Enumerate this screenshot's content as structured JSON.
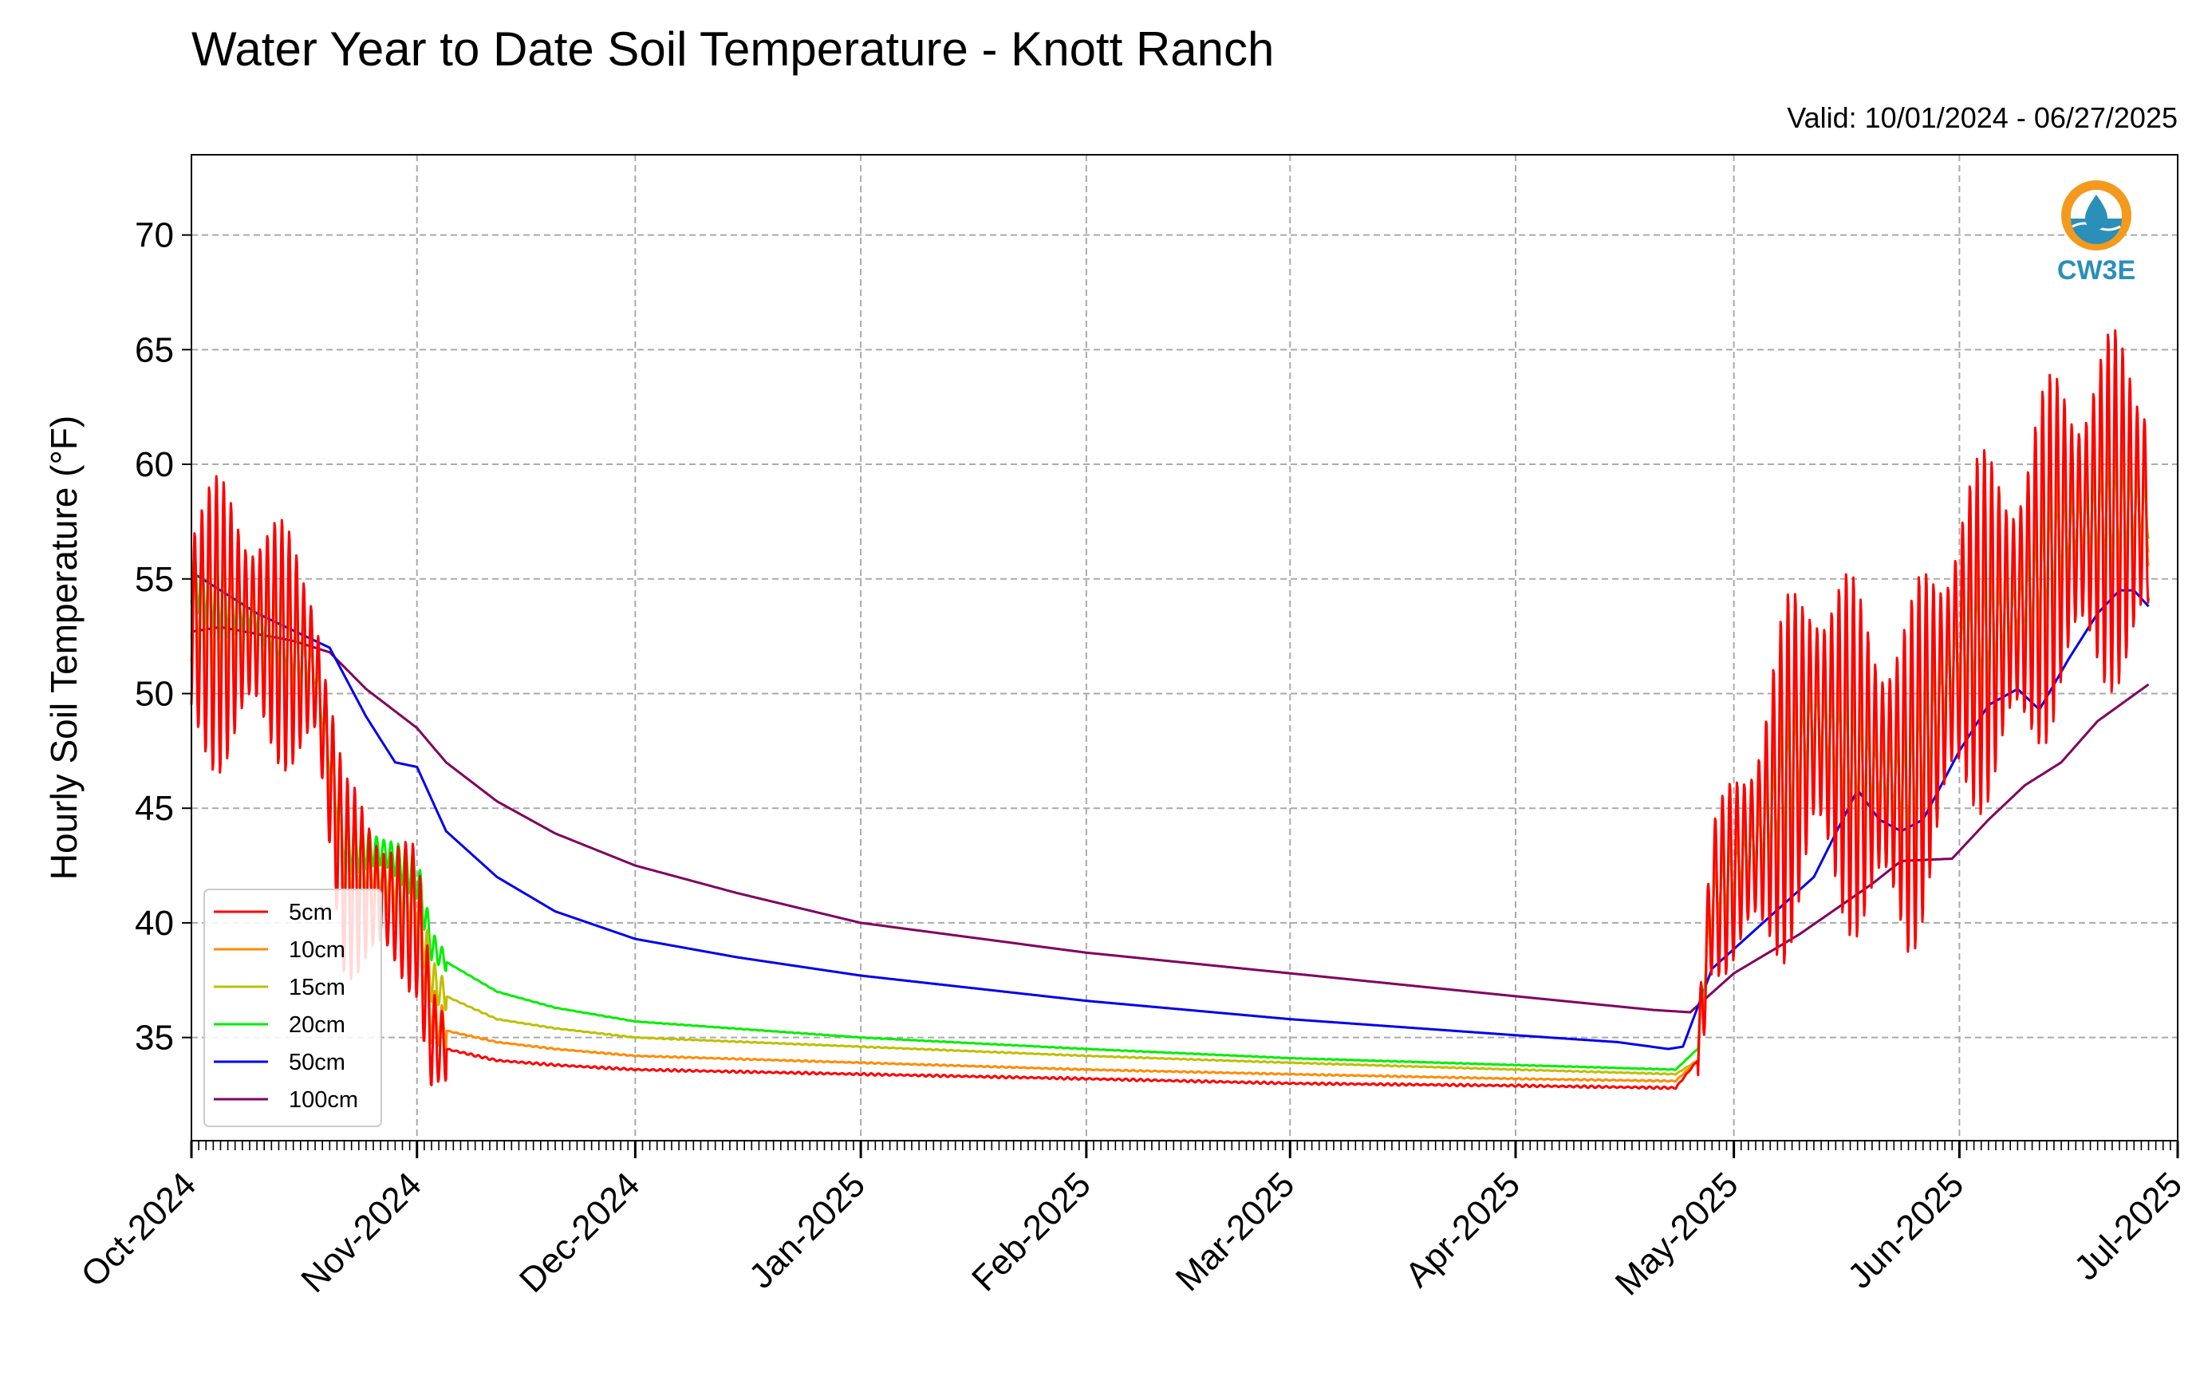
{
  "chart_data": {
    "type": "line",
    "title": "Water Year to Date Soil Temperature - Knott Ranch",
    "subtitle": "Valid: 10/01/2024 - 06/27/2025",
    "xlabel": "",
    "ylabel": "Hourly Soil Temperature (°F)",
    "x_range": [
      "2024-10-01",
      "2025-07-01"
    ],
    "ylim": [
      30.5,
      73.5
    ],
    "y_ticks": [
      35,
      40,
      45,
      50,
      55,
      60,
      65,
      70
    ],
    "x_ticks": [
      {
        "date": "2024-10-01",
        "label": "Oct-2024"
      },
      {
        "date": "2024-11-01",
        "label": "Nov-2024"
      },
      {
        "date": "2024-12-01",
        "label": "Dec-2024"
      },
      {
        "date": "2025-01-01",
        "label": "Jan-2025"
      },
      {
        "date": "2025-02-01",
        "label": "Feb-2025"
      },
      {
        "date": "2025-03-01",
        "label": "Mar-2025"
      },
      {
        "date": "2025-04-01",
        "label": "Apr-2025"
      },
      {
        "date": "2025-05-01",
        "label": "May-2025"
      },
      {
        "date": "2025-06-01",
        "label": "Jun-2025"
      },
      {
        "date": "2025-07-01",
        "label": "Jul-2025"
      }
    ],
    "grid": true,
    "legend_position": "lower-left",
    "logo_text": "CW3E",
    "series": [
      {
        "name": "5cm",
        "color": "#ff0000",
        "amplitude": 1.0,
        "points": [
          [
            "2024-10-01",
            53
          ],
          [
            "2024-10-10",
            53
          ],
          [
            "2024-10-18",
            51
          ],
          [
            "2024-10-22",
            42
          ],
          [
            "2024-10-28",
            41
          ],
          [
            "2024-11-01",
            40
          ],
          [
            "2024-11-03",
            35
          ],
          [
            "2024-11-05",
            34.5
          ],
          [
            "2024-11-12",
            34
          ],
          [
            "2024-11-20",
            33.8
          ],
          [
            "2024-12-01",
            33.6
          ],
          [
            "2025-01-01",
            33.4
          ],
          [
            "2025-02-01",
            33.2
          ],
          [
            "2025-03-01",
            33.0
          ],
          [
            "2025-04-01",
            32.9
          ],
          [
            "2025-04-23",
            32.8
          ],
          [
            "2025-04-26",
            34
          ],
          [
            "2025-04-28",
            41
          ],
          [
            "2025-05-05",
            44
          ],
          [
            "2025-05-12",
            49
          ],
          [
            "2025-05-18",
            47
          ],
          [
            "2025-05-25",
            46
          ],
          [
            "2025-06-01",
            52
          ],
          [
            "2025-06-10",
            54
          ],
          [
            "2025-06-15",
            57
          ],
          [
            "2025-06-22",
            58
          ],
          [
            "2025-06-27",
            58
          ]
        ]
      },
      {
        "name": "10cm",
        "color": "#ff8c00",
        "amplitude": 0.6,
        "points": [
          [
            "2024-10-01",
            53.5
          ],
          [
            "2024-10-10",
            53
          ],
          [
            "2024-10-18",
            51
          ],
          [
            "2024-10-22",
            43
          ],
          [
            "2024-10-28",
            41.5
          ],
          [
            "2024-11-01",
            40.5
          ],
          [
            "2024-11-03",
            36
          ],
          [
            "2024-11-05",
            35.3
          ],
          [
            "2024-11-12",
            34.8
          ],
          [
            "2024-11-20",
            34.5
          ],
          [
            "2024-12-01",
            34.2
          ],
          [
            "2025-01-01",
            33.9
          ],
          [
            "2025-02-01",
            33.6
          ],
          [
            "2025-03-01",
            33.4
          ],
          [
            "2025-04-01",
            33.2
          ],
          [
            "2025-04-23",
            33.1
          ],
          [
            "2025-04-26",
            34
          ],
          [
            "2025-04-28",
            41
          ],
          [
            "2025-05-05",
            44
          ],
          [
            "2025-05-12",
            49
          ],
          [
            "2025-05-18",
            47
          ],
          [
            "2025-05-25",
            46
          ],
          [
            "2025-06-01",
            52
          ],
          [
            "2025-06-10",
            54
          ],
          [
            "2025-06-15",
            57
          ],
          [
            "2025-06-22",
            58
          ],
          [
            "2025-06-27",
            58
          ]
        ]
      },
      {
        "name": "15cm",
        "color": "#bfbf00",
        "amplitude": 0.45,
        "points": [
          [
            "2024-10-01",
            54
          ],
          [
            "2024-10-10",
            53
          ],
          [
            "2024-10-18",
            51
          ],
          [
            "2024-10-22",
            43
          ],
          [
            "2024-10-28",
            42
          ],
          [
            "2024-11-01",
            41
          ],
          [
            "2024-11-03",
            37.5
          ],
          [
            "2024-11-05",
            36.8
          ],
          [
            "2024-11-12",
            35.8
          ],
          [
            "2024-11-20",
            35.4
          ],
          [
            "2024-12-01",
            35.0
          ],
          [
            "2025-01-01",
            34.6
          ],
          [
            "2025-02-01",
            34.2
          ],
          [
            "2025-03-01",
            33.9
          ],
          [
            "2025-04-01",
            33.6
          ],
          [
            "2025-04-23",
            33.4
          ],
          [
            "2025-04-26",
            34
          ],
          [
            "2025-04-28",
            41
          ],
          [
            "2025-05-05",
            44
          ],
          [
            "2025-05-12",
            49
          ],
          [
            "2025-05-18",
            47
          ],
          [
            "2025-05-25",
            46
          ],
          [
            "2025-06-01",
            52
          ],
          [
            "2025-06-10",
            54
          ],
          [
            "2025-06-15",
            57
          ],
          [
            "2025-06-22",
            58
          ],
          [
            "2025-06-27",
            58
          ]
        ]
      },
      {
        "name": "20cm",
        "color": "#00ee00",
        "amplitude": 0.3,
        "points": [
          [
            "2024-10-01",
            55
          ],
          [
            "2024-10-10",
            53.5
          ],
          [
            "2024-10-18",
            51
          ],
          [
            "2024-10-22",
            43.5
          ],
          [
            "2024-10-28",
            43
          ],
          [
            "2024-11-01",
            42
          ],
          [
            "2024-11-03",
            39
          ],
          [
            "2024-11-05",
            38.3
          ],
          [
            "2024-11-12",
            37
          ],
          [
            "2024-11-20",
            36.3
          ],
          [
            "2024-12-01",
            35.7
          ],
          [
            "2025-01-01",
            35.0
          ],
          [
            "2025-02-01",
            34.5
          ],
          [
            "2025-03-01",
            34.1
          ],
          [
            "2025-04-01",
            33.8
          ],
          [
            "2025-04-23",
            33.6
          ],
          [
            "2025-04-26",
            34.5
          ],
          [
            "2025-04-28",
            41
          ],
          [
            "2025-05-05",
            44
          ],
          [
            "2025-05-12",
            49
          ],
          [
            "2025-05-18",
            47
          ],
          [
            "2025-05-25",
            46
          ],
          [
            "2025-06-01",
            52
          ],
          [
            "2025-06-10",
            54
          ],
          [
            "2025-06-15",
            57
          ],
          [
            "2025-06-22",
            58
          ],
          [
            "2025-06-27",
            58
          ]
        ]
      },
      {
        "name": "50cm",
        "color": "#0000ee",
        "amplitude": 0,
        "points": [
          [
            "2024-10-01",
            55.3
          ],
          [
            "2024-10-10",
            53.5
          ],
          [
            "2024-10-20",
            52
          ],
          [
            "2024-10-25",
            49
          ],
          [
            "2024-10-29",
            47
          ],
          [
            "2024-11-01",
            46.8
          ],
          [
            "2024-11-05",
            44
          ],
          [
            "2024-11-12",
            42
          ],
          [
            "2024-11-20",
            40.5
          ],
          [
            "2024-12-01",
            39.3
          ],
          [
            "2024-12-15",
            38.5
          ],
          [
            "2025-01-01",
            37.7
          ],
          [
            "2025-02-01",
            36.6
          ],
          [
            "2025-03-01",
            35.8
          ],
          [
            "2025-04-01",
            35.1
          ],
          [
            "2025-04-15",
            34.8
          ],
          [
            "2025-04-22",
            34.5
          ],
          [
            "2025-04-24",
            34.6
          ],
          [
            "2025-04-28",
            38
          ],
          [
            "2025-05-05",
            40
          ],
          [
            "2025-05-12",
            42
          ],
          [
            "2025-05-18",
            45.8
          ],
          [
            "2025-05-21",
            44.5
          ],
          [
            "2025-05-24",
            44
          ],
          [
            "2025-05-27",
            44.5
          ],
          [
            "2025-06-01",
            47.5
          ],
          [
            "2025-06-05",
            49.5
          ],
          [
            "2025-06-09",
            50.2
          ],
          [
            "2025-06-12",
            49.3
          ],
          [
            "2025-06-16",
            51.5
          ],
          [
            "2025-06-20",
            53.5
          ],
          [
            "2025-06-23",
            54.5
          ],
          [
            "2025-06-25",
            54.5
          ],
          [
            "2025-06-27",
            53.8
          ]
        ]
      },
      {
        "name": "100cm",
        "color": "#800060",
        "amplitude": 0,
        "points": [
          [
            "2024-10-01",
            52.7
          ],
          [
            "2024-10-05",
            52.9
          ],
          [
            "2024-10-15",
            52.3
          ],
          [
            "2024-10-20",
            51.8
          ],
          [
            "2024-10-25",
            50.2
          ],
          [
            "2024-11-01",
            48.5
          ],
          [
            "2024-11-05",
            47.0
          ],
          [
            "2024-11-12",
            45.3
          ],
          [
            "2024-11-20",
            43.9
          ],
          [
            "2024-12-01",
            42.5
          ],
          [
            "2024-12-15",
            41.3
          ],
          [
            "2025-01-01",
            40.0
          ],
          [
            "2025-02-01",
            38.7
          ],
          [
            "2025-03-01",
            37.8
          ],
          [
            "2025-04-01",
            36.8
          ],
          [
            "2025-04-20",
            36.2
          ],
          [
            "2025-04-25",
            36.1
          ],
          [
            "2025-05-01",
            37.8
          ],
          [
            "2025-05-10",
            39.5
          ],
          [
            "2025-05-20",
            41.7
          ],
          [
            "2025-05-24",
            42.7
          ],
          [
            "2025-05-31",
            42.8
          ],
          [
            "2025-06-05",
            44.5
          ],
          [
            "2025-06-10",
            46.0
          ],
          [
            "2025-06-15",
            47.0
          ],
          [
            "2025-06-20",
            48.8
          ],
          [
            "2025-06-27",
            50.4
          ]
        ]
      }
    ]
  }
}
